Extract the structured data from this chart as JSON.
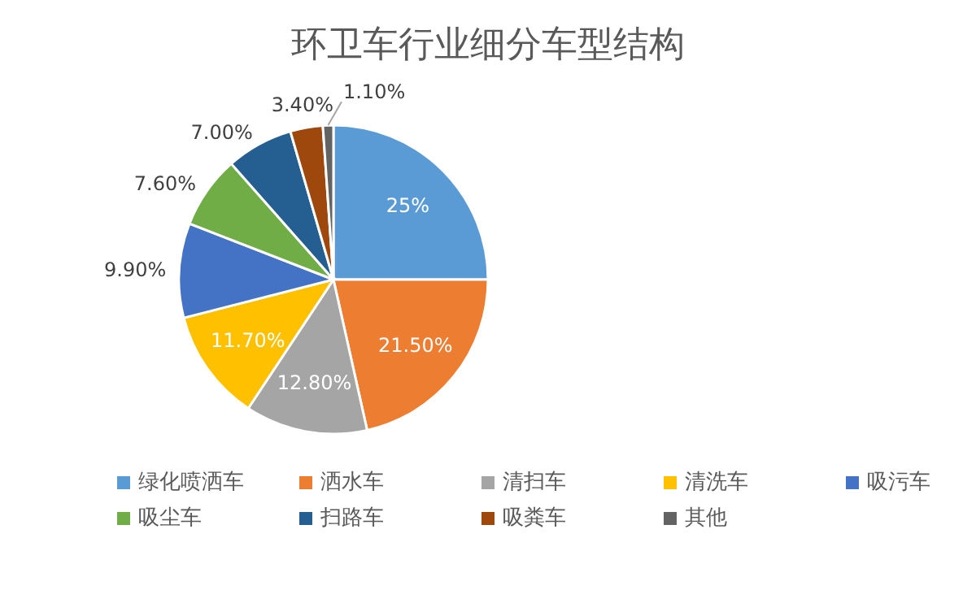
{
  "chart_data": {
    "type": "pie",
    "title": "环卫车行业细分车型结构",
    "categories": [
      "绿化喷洒车",
      "洒水车",
      "清扫车",
      "清洗车",
      "吸污车",
      "吸尘车",
      "扫路车",
      "吸粪车",
      "其他"
    ],
    "values": [
      25,
      21.5,
      12.8,
      11.7,
      9.9,
      7.6,
      7.0,
      3.4,
      1.1
    ],
    "value_labels": [
      "25%",
      "21.50%",
      "12.80%",
      "11.70%",
      "9.90%",
      "7.60%",
      "7.00%",
      "3.40%",
      "1.10%"
    ],
    "colors": [
      "#5b9bd5",
      "#ed7d31",
      "#a5a5a5",
      "#ffc000",
      "#4472c4",
      "#70ad47",
      "#255e91",
      "#9e480e",
      "#636363"
    ],
    "legend": "bottom"
  }
}
